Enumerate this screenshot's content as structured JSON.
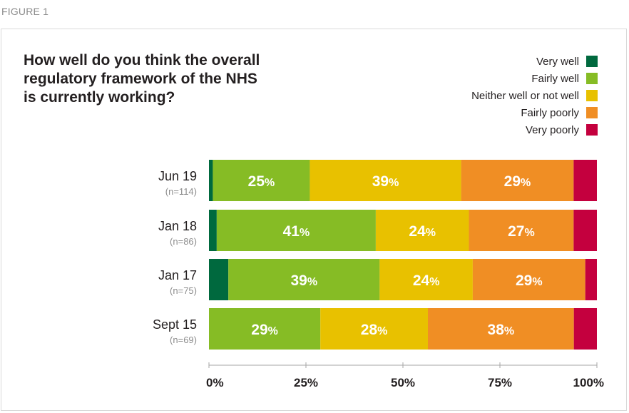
{
  "figure_label": "FIGURE 1",
  "colors": {
    "very_well": "#00693e",
    "fairly_well": "#86bc25",
    "neither": "#e8c100",
    "fairly_poorly": "#f08e24",
    "very_poorly": "#c4003e"
  },
  "chart_data": {
    "type": "bar",
    "orientation": "horizontal",
    "stacked": true,
    "title": "How well do you think the overall regulatory framework of the NHS is currently working?",
    "title_lines": [
      "How well do you think the overall",
      "regulatory framework of the NHS",
      "is currently working?"
    ],
    "legend_position": "top-right",
    "categories": [
      "Jun 19",
      "Jan 18",
      "Jan 17",
      "Sept 15"
    ],
    "sample_sizes": [
      "(n=114)",
      "(n=86)",
      "(n=75)",
      "(n=69)"
    ],
    "series": [
      {
        "name": "Very well",
        "color": "#00693e",
        "values": [
          1,
          2,
          5,
          0
        ]
      },
      {
        "name": "Fairly well",
        "color": "#86bc25",
        "values": [
          25,
          41,
          39,
          29
        ]
      },
      {
        "name": "Neither well or not well",
        "color": "#e8c100",
        "values": [
          39,
          24,
          24,
          28
        ]
      },
      {
        "name": "Fairly poorly",
        "color": "#f08e24",
        "values": [
          29,
          27,
          29,
          38
        ]
      },
      {
        "name": "Very poorly",
        "color": "#c4003e",
        "values": [
          6,
          6,
          3,
          6
        ]
      }
    ],
    "data_labels": [
      [
        null,
        "25%",
        "39%",
        "29%",
        null
      ],
      [
        null,
        "41%",
        "24%",
        "27%",
        null
      ],
      [
        null,
        "39%",
        "24%",
        "29%",
        null
      ],
      [
        null,
        "29%",
        "28%",
        "38%",
        null
      ]
    ],
    "xlim": [
      0,
      100
    ],
    "xticks": [
      "0%",
      "25%",
      "50%",
      "75%",
      "100%"
    ],
    "grid": false
  }
}
